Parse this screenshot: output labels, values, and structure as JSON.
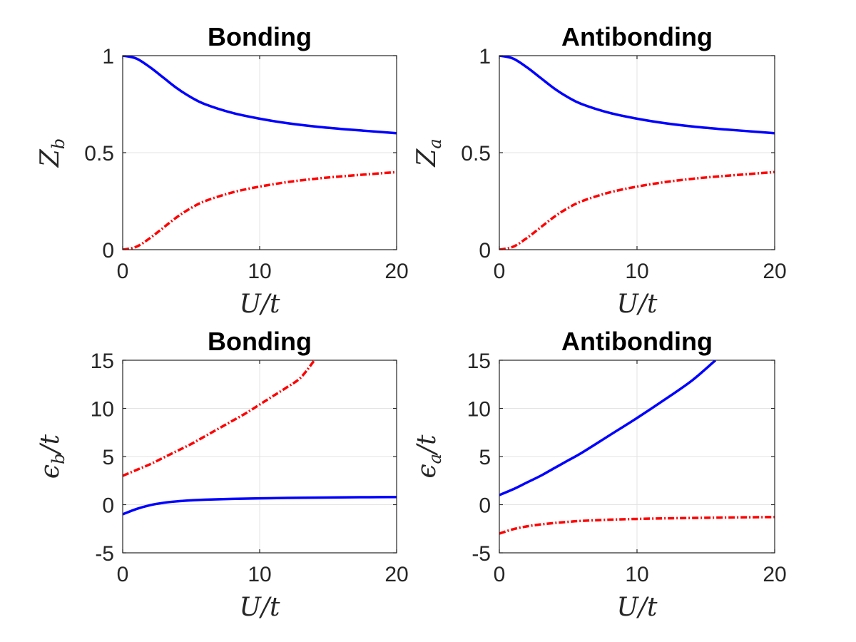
{
  "chart_data": [
    {
      "type": "line",
      "title": "Bonding",
      "xlabel": "U/t",
      "ylabel": {
        "main": "Z",
        "sub": "b",
        "tail": ""
      },
      "xlim": [
        0,
        20
      ],
      "ylim": [
        0,
        1
      ],
      "xticks": [
        0,
        10,
        20
      ],
      "yticks": [
        0,
        0.5,
        1
      ],
      "ytick_labels": [
        "0",
        "0.5",
        "1"
      ],
      "grid": true,
      "series": [
        {
          "name": "solid",
          "color": "#0000ff",
          "style": "solid",
          "x": [
            0,
            1,
            2,
            3,
            4,
            5,
            6,
            8,
            10,
            12,
            14,
            16,
            18,
            20
          ],
          "y": [
            1.0,
            0.985,
            0.94,
            0.885,
            0.83,
            0.785,
            0.75,
            0.705,
            0.675,
            0.652,
            0.635,
            0.622,
            0.611,
            0.6
          ]
        },
        {
          "name": "dashdot",
          "color": "#ff0000",
          "style": "dashdot",
          "x": [
            0,
            1,
            2,
            3,
            4,
            5,
            6,
            8,
            10,
            12,
            14,
            16,
            18,
            20
          ],
          "y": [
            0.0,
            0.015,
            0.06,
            0.115,
            0.17,
            0.215,
            0.25,
            0.295,
            0.325,
            0.348,
            0.365,
            0.378,
            0.389,
            0.4
          ]
        }
      ]
    },
    {
      "type": "line",
      "title": "Antibonding",
      "xlabel": "U/t",
      "ylabel": {
        "main": "Z",
        "sub": "a",
        "tail": ""
      },
      "xlim": [
        0,
        20
      ],
      "ylim": [
        0,
        1
      ],
      "xticks": [
        0,
        10,
        20
      ],
      "yticks": [
        0,
        0.5,
        1
      ],
      "ytick_labels": [
        "0",
        "0.5",
        "1"
      ],
      "grid": true,
      "series": [
        {
          "name": "solid",
          "color": "#0000ff",
          "style": "solid",
          "x": [
            0,
            1,
            2,
            3,
            4,
            5,
            6,
            8,
            10,
            12,
            14,
            16,
            18,
            20
          ],
          "y": [
            1.0,
            0.985,
            0.94,
            0.885,
            0.83,
            0.785,
            0.75,
            0.705,
            0.675,
            0.652,
            0.635,
            0.622,
            0.611,
            0.6
          ]
        },
        {
          "name": "dashdot",
          "color": "#ff0000",
          "style": "dashdot",
          "x": [
            0,
            1,
            2,
            3,
            4,
            5,
            6,
            8,
            10,
            12,
            14,
            16,
            18,
            20
          ],
          "y": [
            0.0,
            0.015,
            0.06,
            0.115,
            0.17,
            0.215,
            0.25,
            0.295,
            0.325,
            0.348,
            0.365,
            0.378,
            0.389,
            0.4
          ]
        }
      ]
    },
    {
      "type": "line",
      "title": "Bonding",
      "xlabel": "U/t",
      "ylabel": {
        "main": "ϵ",
        "sub": "b",
        "tail": "/t"
      },
      "xlim": [
        0,
        20
      ],
      "ylim": [
        -5,
        15
      ],
      "xticks": [
        0,
        10,
        20
      ],
      "yticks": [
        -5,
        0,
        5,
        10,
        15
      ],
      "ytick_labels": [
        "-5",
        "0",
        "5",
        "10",
        "15"
      ],
      "grid": true,
      "series": [
        {
          "name": "solid",
          "color": "#0000ff",
          "style": "solid",
          "x": [
            0,
            1,
            2,
            3,
            4,
            5,
            6,
            8,
            10,
            12,
            14,
            16,
            18,
            20
          ],
          "y": [
            -1.0,
            -0.45,
            -0.05,
            0.2,
            0.35,
            0.45,
            0.52,
            0.6,
            0.66,
            0.7,
            0.73,
            0.76,
            0.78,
            0.8
          ]
        },
        {
          "name": "dashdot",
          "color": "#ff0000",
          "style": "dashdot",
          "x": [
            0,
            1,
            2,
            3,
            4,
            5,
            6,
            7,
            8,
            9,
            10,
            11,
            12,
            13,
            14
          ],
          "y": [
            3.0,
            3.6,
            4.2,
            4.9,
            5.6,
            6.3,
            7.1,
            7.9,
            8.7,
            9.5,
            10.4,
            11.3,
            12.2,
            13.2,
            15.0
          ]
        }
      ]
    },
    {
      "type": "line",
      "title": "Antibonding",
      "xlabel": "U/t",
      "ylabel": {
        "main": "ϵ",
        "sub": "a",
        "tail": "/t"
      },
      "xlim": [
        0,
        20
      ],
      "ylim": [
        -5,
        15
      ],
      "xticks": [
        0,
        10,
        20
      ],
      "yticks": [
        -5,
        0,
        5,
        10,
        15
      ],
      "ytick_labels": [
        "-5",
        "0",
        "5",
        "10",
        "15"
      ],
      "grid": true,
      "series": [
        {
          "name": "solid",
          "color": "#0000ff",
          "style": "solid",
          "x": [
            0,
            1,
            2,
            3,
            4,
            5,
            6,
            8,
            10,
            12,
            14,
            15.7
          ],
          "y": [
            1.0,
            1.6,
            2.3,
            3.0,
            3.8,
            4.6,
            5.4,
            7.2,
            9.0,
            10.9,
            12.9,
            15.0
          ]
        },
        {
          "name": "dashdot",
          "color": "#ff0000",
          "style": "dashdot",
          "x": [
            0,
            1,
            2,
            3,
            4,
            5,
            6,
            8,
            10,
            12,
            14,
            16,
            18,
            20
          ],
          "y": [
            -3.0,
            -2.55,
            -2.25,
            -2.05,
            -1.9,
            -1.78,
            -1.68,
            -1.56,
            -1.48,
            -1.42,
            -1.38,
            -1.34,
            -1.31,
            -1.28
          ]
        }
      ]
    }
  ]
}
